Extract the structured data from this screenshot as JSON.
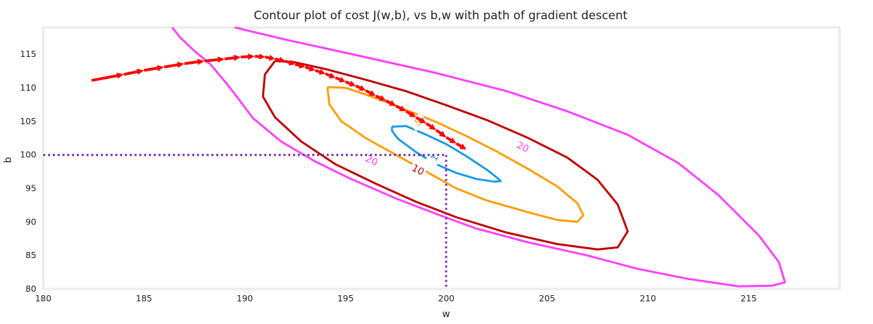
{
  "chart_data": {
    "type": "contour",
    "title": "Contour plot of cost J(w,b), vs b,w with path of gradient descent",
    "xlabel": "w",
    "ylabel": "b",
    "xlim": [
      180,
      219.5
    ],
    "ylim": [
      80,
      119
    ],
    "xticks": [
      180,
      185,
      190,
      195,
      200,
      205,
      210,
      215
    ],
    "yticks": [
      80,
      85,
      90,
      95,
      100,
      105,
      110,
      115
    ],
    "grid": false,
    "contours": [
      {
        "level": 1,
        "label": "1",
        "color": "#1a9bea",
        "path": [
          [
            197.3,
            104.2
          ],
          [
            198,
            104.3
          ],
          [
            199,
            103
          ],
          [
            200,
            101.6
          ],
          [
            201,
            99.8
          ],
          [
            202,
            97.8
          ],
          [
            202.6,
            96.4
          ],
          [
            202.7,
            96.1
          ],
          [
            202.4,
            96.0
          ],
          [
            201.5,
            96.4
          ],
          [
            200.5,
            97.3
          ],
          [
            199.5,
            98.6
          ],
          [
            198.5,
            100.4
          ],
          [
            197.6,
            102.4
          ],
          [
            197.3,
            103.6
          ],
          [
            197.3,
            104.2
          ]
        ],
        "label_at": [
          199.4,
          99.6
        ],
        "label_angle": -60
      },
      {
        "level": 5,
        "label": "5",
        "color": "#ff9d0a",
        "path": [
          [
            194.1,
            110.1
          ],
          [
            195,
            110.0
          ],
          [
            196,
            109.0
          ],
          [
            197,
            107.9
          ],
          [
            198,
            106.7
          ],
          [
            199.5,
            104.9
          ],
          [
            201,
            102.8
          ],
          [
            202.5,
            100.5
          ],
          [
            204,
            98.0
          ],
          [
            205.5,
            95.3
          ],
          [
            206.5,
            92.8
          ],
          [
            206.8,
            91.0
          ],
          [
            206.5,
            90.0
          ],
          [
            205.5,
            90.3
          ],
          [
            204,
            91.5
          ],
          [
            202,
            93.2
          ],
          [
            200.5,
            95.0
          ],
          [
            199,
            97.5
          ],
          [
            197.5,
            100.0
          ],
          [
            196,
            102.5
          ],
          [
            194.8,
            105.0
          ],
          [
            194.2,
            107.5
          ],
          [
            194.1,
            110.1
          ]
        ],
        "label_at": [
          198.6,
          104.9
        ],
        "label_angle": -38
      },
      {
        "level": 10,
        "label": "10",
        "color": "#c00000",
        "path": [
          [
            191.5,
            114.0
          ],
          [
            192.5,
            113.8
          ],
          [
            194,
            112.8
          ],
          [
            196,
            111.2
          ],
          [
            198,
            109.5
          ],
          [
            200,
            107.4
          ],
          [
            202,
            105.2
          ],
          [
            204,
            102.6
          ],
          [
            206,
            99.6
          ],
          [
            207.5,
            96.3
          ],
          [
            208.5,
            92.6
          ],
          [
            209.0,
            88.6
          ],
          [
            208.5,
            86.2
          ],
          [
            207.5,
            85.9
          ],
          [
            205.5,
            86.7
          ],
          [
            203,
            88.4
          ],
          [
            200.5,
            90.7
          ],
          [
            198.5,
            93.0
          ],
          [
            196.5,
            95.7
          ],
          [
            194.5,
            98.6
          ],
          [
            192.8,
            102.0
          ],
          [
            191.5,
            105.6
          ],
          [
            190.9,
            108.7
          ],
          [
            191,
            112
          ],
          [
            191.5,
            114.0
          ]
        ],
        "label_at": [
          198.6,
          97.8
        ],
        "label_angle": 28
      },
      {
        "level": 20,
        "label": "20",
        "color": "#ff40ff",
        "path": [
          [
            188.3,
            113.5
          ],
          [
            187.5,
            115.5
          ],
          [
            186.8,
            117.5
          ],
          [
            186.4,
            119
          ],
          null,
          [
            189.5,
            119
          ],
          [
            192,
            117.2
          ],
          [
            195.5,
            114.9
          ],
          [
            199.5,
            112.2
          ],
          [
            203,
            109.5
          ],
          [
            206,
            106.5
          ],
          [
            209,
            103.0
          ],
          [
            211.5,
            98.8
          ],
          [
            213.5,
            94.0
          ],
          [
            215.5,
            88.0
          ],
          [
            216.5,
            84.0
          ],
          [
            216.8,
            81.0
          ],
          [
            216.2,
            80.5
          ],
          [
            214.5,
            80.4
          ],
          [
            212,
            81.5
          ],
          [
            209.5,
            83.0
          ],
          [
            207,
            85.0
          ],
          [
            204,
            87.0
          ],
          [
            201.5,
            89.0
          ],
          [
            199.5,
            91.2
          ],
          [
            197.5,
            93.5
          ],
          [
            195.2,
            96.5
          ],
          [
            193.5,
            99.0
          ],
          [
            191.8,
            102.0
          ],
          [
            190.4,
            105.5
          ],
          [
            189.6,
            108.7
          ],
          [
            189,
            111
          ],
          [
            188.3,
            113.5
          ]
        ],
        "label_at": [
          [
            196.3,
            99.2
          ],
          [
            203.8,
            101.2
          ]
        ],
        "label_angle": 25
      }
    ],
    "crosshair": {
      "w": 199.99,
      "b": 99.99,
      "color": "#7b2fa8"
    },
    "path": {
      "color": "#ff0000",
      "points": [
        [
          182.4,
          111.1
        ],
        [
          184,
          112.0
        ],
        [
          185,
          112.6
        ],
        [
          186,
          113.1
        ],
        [
          187,
          113.6
        ],
        [
          188,
          114.0
        ],
        [
          189,
          114.3
        ],
        [
          189.8,
          114.6
        ],
        [
          190.5,
          114.7
        ],
        [
          191,
          114.6
        ],
        [
          191.5,
          114.3
        ],
        [
          192,
          114.0
        ],
        [
          192.5,
          113.5
        ],
        [
          193,
          113.1
        ],
        [
          193.5,
          112.6
        ],
        [
          194,
          112.1
        ],
        [
          194.5,
          111.5
        ],
        [
          195,
          110.9
        ],
        [
          195.5,
          110.3
        ],
        [
          196,
          109.6
        ],
        [
          196.5,
          108.8
        ],
        [
          197,
          108.1
        ],
        [
          197.5,
          107.3
        ],
        [
          198,
          106.5
        ],
        [
          198.5,
          105.6
        ],
        [
          199,
          104.7
        ],
        [
          199.5,
          103.7
        ],
        [
          200,
          102.6
        ],
        [
          200.5,
          101.7
        ],
        [
          201,
          100.8
        ]
      ]
    }
  }
}
